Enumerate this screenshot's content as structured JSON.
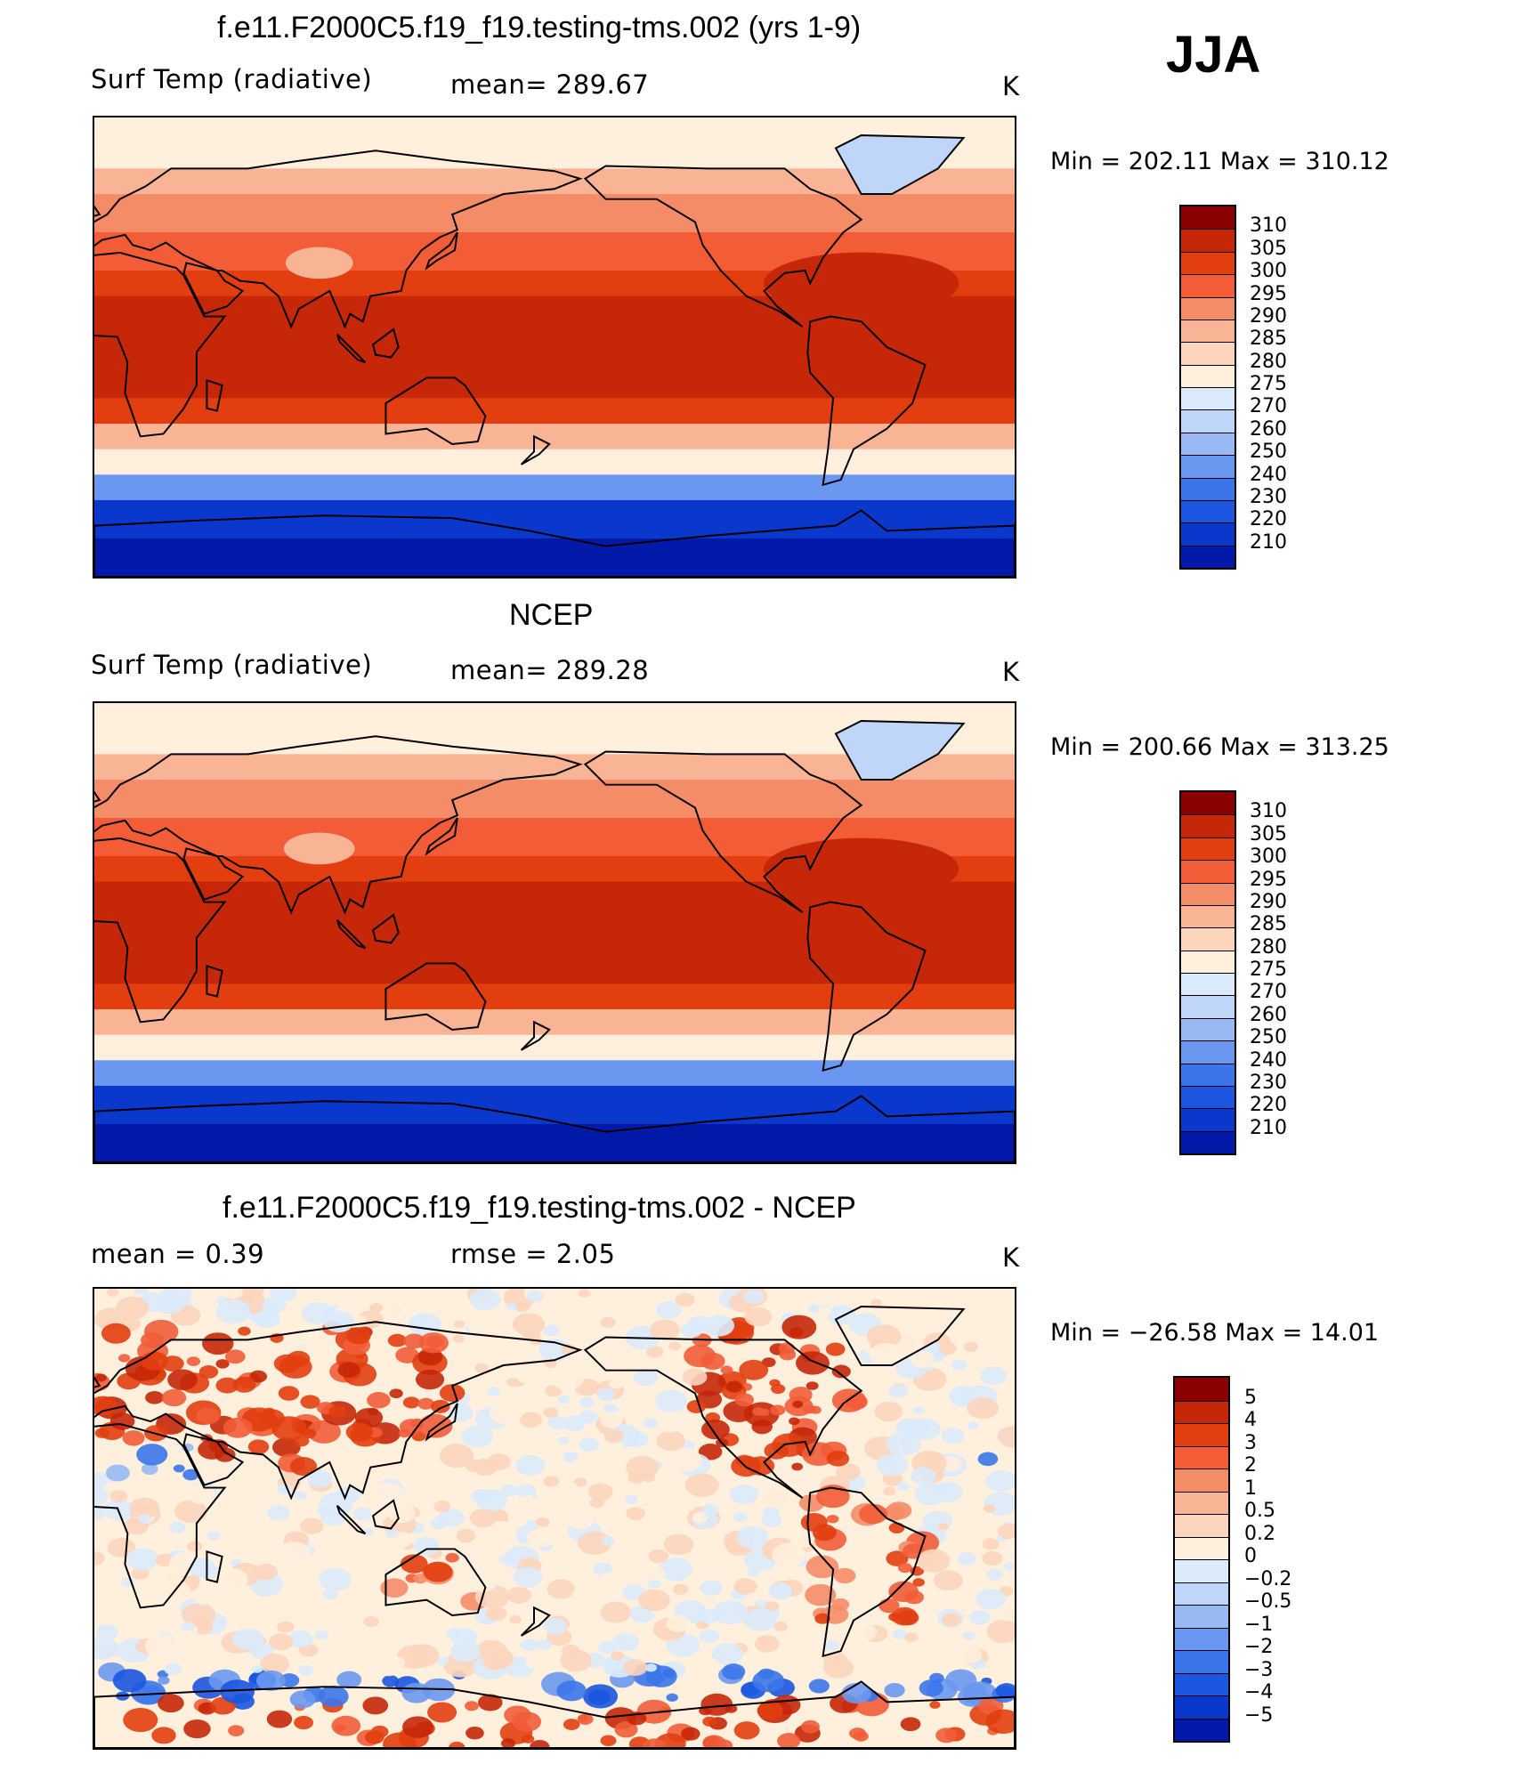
{
  "season": "JJA",
  "colors": {
    "temp_scale": [
      "#000080",
      "#0019a8",
      "#0a37cc",
      "#1b55e0",
      "#3b75ea",
      "#6a98f0",
      "#98b9f4",
      "#bfd6f8",
      "#dcebfb",
      "#fff0dd",
      "#fcd5bc",
      "#f8b495",
      "#f58c68",
      "#f25d38",
      "#e23e10",
      "#c52708",
      "#8b0000"
    ],
    "diff_scale": [
      "#000080",
      "#0019a8",
      "#0a37cc",
      "#1b55e0",
      "#3b75ea",
      "#6a98f0",
      "#98b9f4",
      "#bfd6f8",
      "#dcebfb",
      "#fff0dd",
      "#fcd5bc",
      "#f8b495",
      "#f58c68",
      "#f25d38",
      "#e23e10",
      "#c52708",
      "#8b0000"
    ],
    "land_outline": "#000000"
  },
  "chart_data": [
    {
      "type": "heatmap",
      "title": "f.e11.F2000C5.f19_f19.testing-tms.002 (yrs 1-9)",
      "variable": "Surf Temp (radiative)",
      "stat": "mean=  289.67",
      "units": "K",
      "minmax": "Min  =  202.11  Max  =  310.12",
      "min": 202.11,
      "max": 310.12,
      "mean": 289.67,
      "colorbar_levels": [
        "310",
        "305",
        "300",
        "295",
        "290",
        "285",
        "280",
        "275",
        "270",
        "260",
        "250",
        "240",
        "230",
        "220",
        "210"
      ]
    },
    {
      "type": "heatmap",
      "title": "NCEP",
      "variable": "Surf Temp (radiative)",
      "stat": "mean=  289.28",
      "units": "K",
      "minmax": "Min  =  200.66  Max  =  313.25",
      "min": 200.66,
      "max": 313.25,
      "mean": 289.28,
      "colorbar_levels": [
        "310",
        "305",
        "300",
        "295",
        "290",
        "285",
        "280",
        "275",
        "270",
        "260",
        "250",
        "240",
        "230",
        "220",
        "210"
      ]
    },
    {
      "type": "heatmap",
      "title": "f.e11.F2000C5.f19_f19.testing-tms.002 - NCEP",
      "stat_mean": "mean  =      0.39",
      "stat_rmse": "rmse  =      2.05",
      "units": "K",
      "minmax": "Min  =  −26.58  Max  =     14.01",
      "min": -26.58,
      "max": 14.01,
      "mean": 0.39,
      "rmse": 2.05,
      "colorbar_levels": [
        "5",
        "4",
        "3",
        "2",
        "1",
        "0.5",
        "0.2",
        "0",
        "−0.2",
        "−0.5",
        "−1",
        "−2",
        "−3",
        "−4",
        "−5"
      ]
    }
  ]
}
